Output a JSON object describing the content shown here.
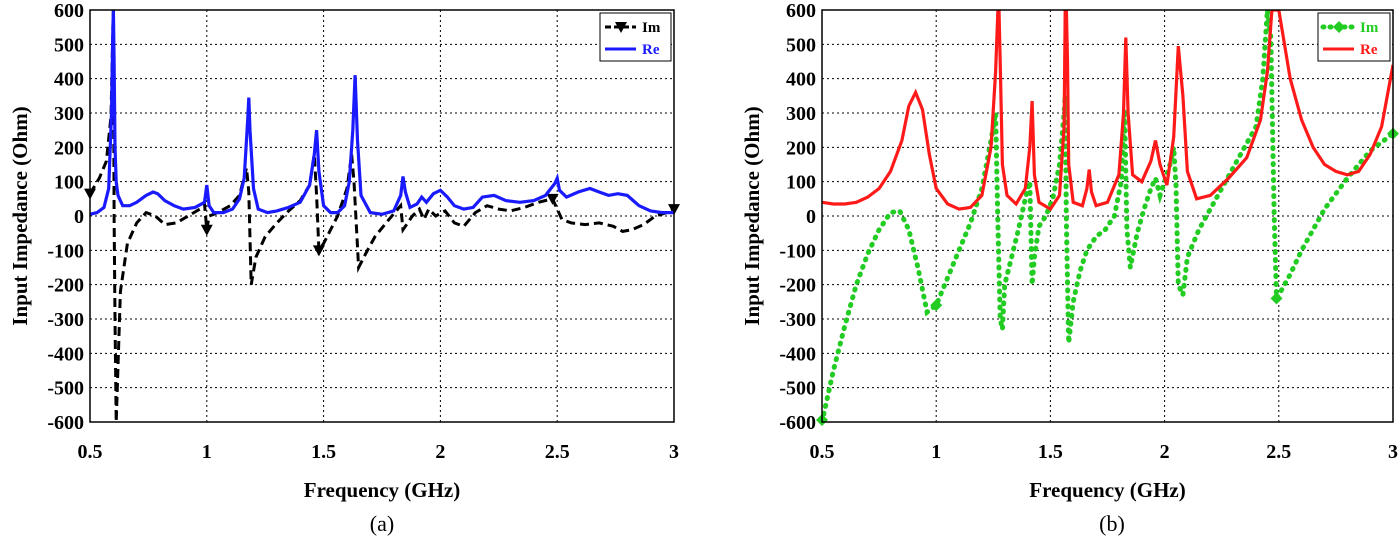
{
  "chart_data": [
    {
      "type": "line",
      "caption": "(a)",
      "xlabel": "Frequency (GHz)",
      "ylabel": "Input Impedance (Ohm)",
      "xlim": [
        0.5,
        3
      ],
      "ylim": [
        -600,
        600
      ],
      "xticks": [
        "0.5",
        "1",
        "1.5",
        "2",
        "2.5",
        "3"
      ],
      "yticks": [
        "600",
        "500",
        "400",
        "300",
        "200",
        "100",
        "0",
        "-100",
        "-200",
        "-300",
        "-400",
        "-500",
        "-600"
      ],
      "grid": true,
      "legend_position": "top-right",
      "series": [
        {
          "name": "Im",
          "color": "#000000",
          "style": "dashed",
          "marker": "triangle-down",
          "x": [
            0.5,
            0.54,
            0.57,
            0.59,
            0.598,
            0.6,
            0.603,
            0.607,
            0.612,
            0.63,
            0.66,
            0.7,
            0.74,
            0.78,
            0.82,
            0.87,
            0.92,
            0.97,
            0.99,
            1.0,
            1.01,
            1.03,
            1.06,
            1.1,
            1.14,
            1.17,
            1.18,
            1.19,
            1.21,
            1.25,
            1.3,
            1.35,
            1.4,
            1.44,
            1.46,
            1.47,
            1.48,
            1.5,
            1.53,
            1.56,
            1.6,
            1.62,
            1.63,
            1.65,
            1.68,
            1.72,
            1.78,
            1.83,
            1.84,
            1.85,
            1.88,
            1.91,
            1.93,
            1.95,
            1.98,
            2.02,
            2.06,
            2.1,
            2.15,
            2.2,
            2.25,
            2.3,
            2.36,
            2.42,
            2.48,
            2.5,
            2.52,
            2.56,
            2.62,
            2.68,
            2.74,
            2.78,
            2.82,
            2.87,
            2.92,
            2.97,
            3.0
          ],
          "y": [
            65,
            110,
            160,
            290,
            550,
            600,
            0,
            -300,
            -600,
            -220,
            -80,
            -20,
            10,
            0,
            -25,
            -20,
            0,
            20,
            35,
            -40,
            0,
            5,
            15,
            30,
            60,
            140,
            70,
            -200,
            -120,
            -60,
            -20,
            15,
            45,
            90,
            180,
            60,
            -100,
            -80,
            -40,
            0,
            80,
            180,
            100,
            -150,
            -110,
            -60,
            -10,
            30,
            -40,
            -30,
            0,
            20,
            -10,
            20,
            0,
            15,
            -20,
            -30,
            10,
            30,
            20,
            15,
            25,
            40,
            50,
            20,
            -10,
            -20,
            -25,
            -20,
            -30,
            -45,
            -40,
            -25,
            0,
            10,
            20
          ]
        },
        {
          "name": "Re",
          "color": "#1a1aff",
          "style": "solid",
          "x": [
            0.5,
            0.53,
            0.56,
            0.58,
            0.592,
            0.598,
            0.6,
            0.603,
            0.607,
            0.612,
            0.62,
            0.64,
            0.67,
            0.7,
            0.74,
            0.77,
            0.79,
            0.82,
            0.86,
            0.9,
            0.95,
            0.99,
            1.0,
            1.01,
            1.03,
            1.07,
            1.11,
            1.14,
            1.16,
            1.175,
            1.18,
            1.185,
            1.2,
            1.22,
            1.26,
            1.3,
            1.35,
            1.4,
            1.44,
            1.46,
            1.47,
            1.48,
            1.5,
            1.53,
            1.56,
            1.59,
            1.61,
            1.625,
            1.635,
            1.645,
            1.66,
            1.7,
            1.75,
            1.8,
            1.83,
            1.84,
            1.85,
            1.87,
            1.9,
            1.92,
            1.94,
            1.97,
            2.0,
            2.03,
            2.06,
            2.1,
            2.14,
            2.18,
            2.23,
            2.28,
            2.34,
            2.4,
            2.45,
            2.49,
            2.5,
            2.51,
            2.54,
            2.59,
            2.64,
            2.68,
            2.72,
            2.76,
            2.8,
            2.85,
            2.9,
            2.95,
            3.0
          ],
          "y": [
            5,
            10,
            25,
            80,
            300,
            550,
            600,
            450,
            200,
            100,
            60,
            30,
            30,
            40,
            60,
            70,
            65,
            45,
            30,
            20,
            25,
            40,
            90,
            30,
            10,
            10,
            20,
            50,
            110,
            280,
            345,
            250,
            80,
            20,
            10,
            15,
            25,
            40,
            90,
            180,
            250,
            130,
            30,
            10,
            10,
            30,
            100,
            250,
            410,
            220,
            60,
            10,
            5,
            15,
            60,
            115,
            70,
            25,
            35,
            55,
            40,
            65,
            75,
            55,
            30,
            20,
            25,
            55,
            60,
            45,
            40,
            45,
            60,
            95,
            110,
            75,
            55,
            70,
            80,
            70,
            60,
            65,
            60,
            30,
            15,
            10,
            10
          ]
        }
      ]
    },
    {
      "type": "line",
      "caption": "(b)",
      "xlabel": "Frequency (GHz)",
      "ylabel": "Input Impedance (Ohm)",
      "xlim": [
        0.5,
        3
      ],
      "ylim": [
        -600,
        600
      ],
      "xticks": [
        "0.5",
        "1",
        "1.5",
        "2",
        "2.5",
        "3"
      ],
      "yticks": [
        "600",
        "500",
        "400",
        "300",
        "200",
        "100",
        "0",
        "-100",
        "-200",
        "-300",
        "-400",
        "-500",
        "-600"
      ],
      "grid": true,
      "legend_position": "top-right",
      "series": [
        {
          "name": "Im",
          "color": "#22cc22",
          "style": "dotted",
          "marker": "diamond",
          "x": [
            0.5,
            0.55,
            0.6,
            0.65,
            0.7,
            0.75,
            0.8,
            0.84,
            0.88,
            0.92,
            0.96,
            1.0,
            1.05,
            1.1,
            1.15,
            1.2,
            1.24,
            1.26,
            1.27,
            1.28,
            1.29,
            1.3,
            1.33,
            1.36,
            1.39,
            1.41,
            1.42,
            1.43,
            1.45,
            1.48,
            1.51,
            1.54,
            1.56,
            1.565,
            1.57,
            1.58,
            1.6,
            1.63,
            1.66,
            1.68,
            1.7,
            1.74,
            1.78,
            1.81,
            1.825,
            1.835,
            1.85,
            1.88,
            1.91,
            1.94,
            1.96,
            1.98,
            2.0,
            2.02,
            2.04,
            2.05,
            2.06,
            2.08,
            2.1,
            2.15,
            2.2,
            2.25,
            2.3,
            2.35,
            2.4,
            2.43,
            2.45,
            2.465,
            2.48,
            2.49,
            2.5,
            2.55,
            2.6,
            2.7,
            2.8,
            2.9,
            3.0
          ],
          "y": [
            -600,
            -450,
            -320,
            -200,
            -110,
            -40,
            10,
            15,
            -40,
            -150,
            -280,
            -260,
            -180,
            -100,
            -20,
            80,
            220,
            300,
            -20,
            -300,
            -330,
            -200,
            -120,
            -40,
            50,
            100,
            -200,
            -120,
            -30,
            0,
            50,
            150,
            300,
            350,
            -20,
            -370,
            -250,
            -160,
            -100,
            -80,
            -60,
            -40,
            0,
            100,
            310,
            -40,
            -150,
            -50,
            20,
            80,
            110,
            60,
            100,
            140,
            200,
            90,
            -200,
            -230,
            -120,
            -40,
            20,
            80,
            140,
            200,
            260,
            400,
            600,
            520,
            0,
            -240,
            -230,
            -170,
            -100,
            20,
            110,
            190,
            240
          ]
        },
        {
          "name": "Re",
          "color": "#ff1a1a",
          "style": "solid",
          "x": [
            0.5,
            0.55,
            0.6,
            0.65,
            0.7,
            0.75,
            0.8,
            0.85,
            0.88,
            0.91,
            0.94,
            0.97,
            1.0,
            1.05,
            1.1,
            1.15,
            1.2,
            1.24,
            1.26,
            1.27,
            1.275,
            1.28,
            1.29,
            1.31,
            1.35,
            1.39,
            1.41,
            1.42,
            1.43,
            1.45,
            1.5,
            1.54,
            1.56,
            1.565,
            1.57,
            1.575,
            1.58,
            1.6,
            1.64,
            1.66,
            1.67,
            1.68,
            1.7,
            1.75,
            1.8,
            1.82,
            1.83,
            1.84,
            1.86,
            1.9,
            1.94,
            1.96,
            1.98,
            2.01,
            2.04,
            2.06,
            2.08,
            2.1,
            2.14,
            2.2,
            2.28,
            2.36,
            2.42,
            2.45,
            2.47,
            2.48,
            2.49,
            2.5,
            2.55,
            2.6,
            2.65,
            2.7,
            2.75,
            2.8,
            2.85,
            2.9,
            2.95,
            3.0
          ],
          "y": [
            40,
            35,
            35,
            40,
            55,
            80,
            130,
            220,
            320,
            360,
            310,
            180,
            80,
            35,
            20,
            25,
            60,
            200,
            420,
            600,
            600,
            450,
            150,
            60,
            35,
            80,
            200,
            335,
            120,
            40,
            20,
            60,
            260,
            600,
            600,
            450,
            150,
            40,
            30,
            80,
            135,
            70,
            30,
            40,
            120,
            300,
            520,
            300,
            120,
            100,
            160,
            220,
            150,
            90,
            230,
            495,
            350,
            130,
            50,
            60,
            110,
            170,
            280,
            420,
            600,
            600,
            600,
            600,
            400,
            280,
            200,
            150,
            130,
            120,
            130,
            180,
            260,
            440
          ]
        }
      ]
    }
  ]
}
